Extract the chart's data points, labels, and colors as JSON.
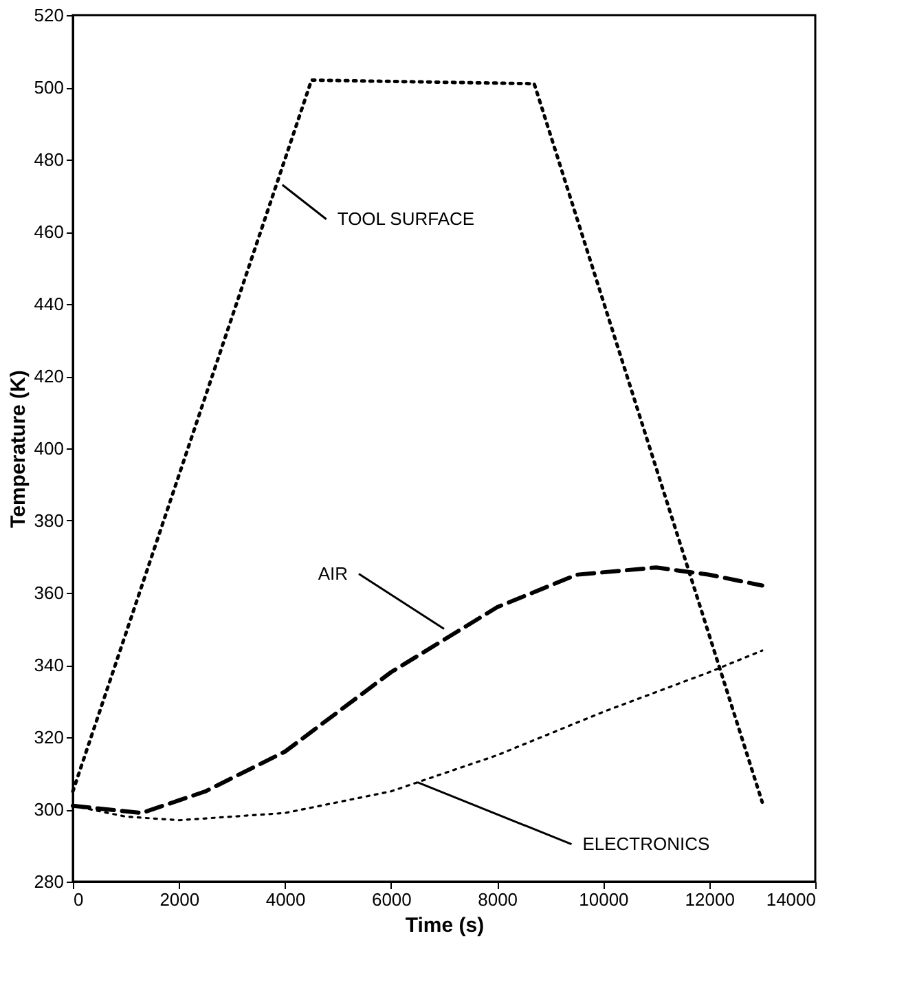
{
  "chart_data": {
    "type": "line",
    "xlabel": "Time (s)",
    "ylabel": "Temperature (K)",
    "xlim": [
      0,
      14000
    ],
    "xticks": [
      0,
      2000,
      4000,
      6000,
      8000,
      10000,
      12000,
      14000
    ],
    "ylim": [
      280,
      520
    ],
    "yticks": [
      280,
      300,
      320,
      340,
      360,
      380,
      400,
      420,
      440,
      460,
      480,
      500,
      520
    ],
    "grid": false,
    "marker": "none",
    "series": [
      {
        "color": "#000000",
        "line_style": "dotted",
        "x": [
          0,
          4500,
          8700,
          13000
        ],
        "values": [
          305,
          502,
          501,
          302
        ]
      },
      {
        "color": "#000000",
        "line_style": "dashed",
        "x": [
          0,
          1300,
          2500,
          4000,
          6000,
          8000,
          9500,
          11000,
          12000,
          13000
        ],
        "values": [
          301,
          299,
          305,
          316,
          338,
          356,
          365,
          367,
          365,
          362
        ]
      },
      {
        "color": "#000000",
        "line_style": "dotted",
        "x": [
          0,
          1000,
          2000,
          4000,
          6000,
          8000,
          10000,
          12000,
          13000
        ],
        "values": [
          301,
          298,
          297,
          299,
          305,
          315,
          327,
          338,
          344
        ]
      }
    ],
    "annotations": [
      {
        "text": "TOOL SURFACE",
        "x": 3950,
        "y": 473
      },
      {
        "text": "AIR",
        "x": 7000,
        "y": 350
      },
      {
        "text": "ELECTRONICS",
        "x": 6500,
        "y": 307.5
      }
    ]
  }
}
